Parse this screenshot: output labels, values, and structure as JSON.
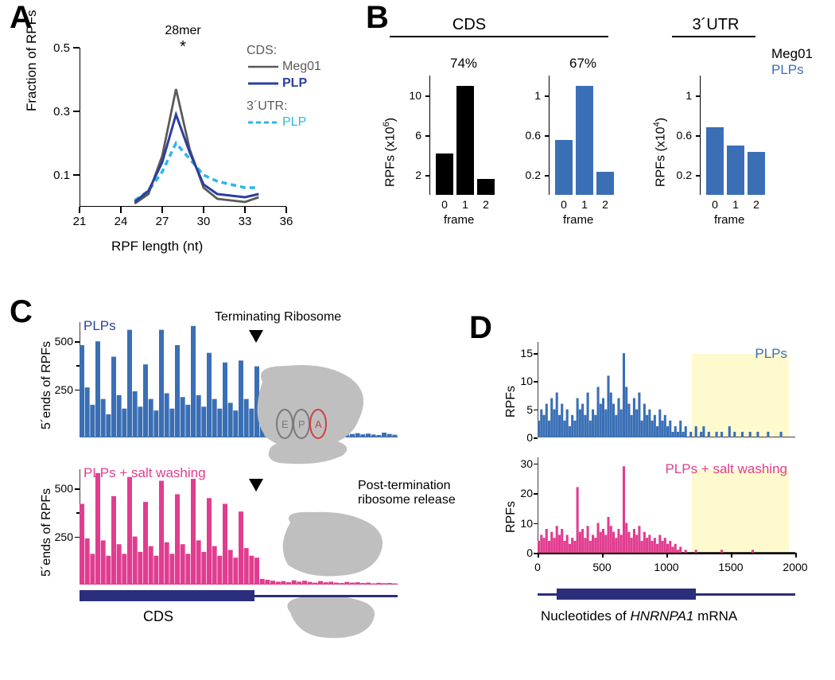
{
  "labels": {
    "A": "A",
    "B": "B",
    "C": "C",
    "D": "D"
  },
  "colors": {
    "meg01": "#5a5a5a",
    "plp": "#2b3fa0",
    "plp_utr": "#2ab7e8",
    "black": "#000000",
    "plp_bar": "#3a6fb5",
    "magenta": "#e13d90",
    "cds_track": "#2b2e7a",
    "utr_box": "#fff59b",
    "grey_ribo": "#bfbfbf"
  },
  "panelA": {
    "ylabel": "Fraction of RPFs",
    "xlabel": "RPF length (nt)",
    "peak_label": "28mer",
    "peak_star": "*",
    "ylim": [
      0,
      0.5
    ],
    "yticks": [
      0.1,
      0.3,
      0.5
    ],
    "xlim": [
      21,
      36
    ],
    "xticks": [
      21,
      24,
      27,
      30,
      33,
      36
    ],
    "legend": {
      "cds_hdr": "CDS:",
      "utr_hdr": "3´UTR:",
      "meg01": "Meg01",
      "plp": "PLP",
      "plp_utr": "PLP"
    },
    "series": {
      "meg01": {
        "x": [
          25,
          26,
          27,
          28,
          29,
          30,
          31,
          32,
          33,
          34
        ],
        "y": [
          0.01,
          0.04,
          0.16,
          0.37,
          0.18,
          0.06,
          0.025,
          0.02,
          0.015,
          0.03
        ]
      },
      "plp": {
        "x": [
          25,
          26,
          27,
          28,
          29,
          30,
          31,
          32,
          33,
          34
        ],
        "y": [
          0.015,
          0.05,
          0.14,
          0.29,
          0.17,
          0.07,
          0.04,
          0.035,
          0.03,
          0.04
        ]
      },
      "plp_utr": {
        "x": [
          25,
          26,
          27,
          28,
          29,
          30,
          31,
          32,
          33,
          34
        ],
        "y": [
          0.02,
          0.05,
          0.11,
          0.2,
          0.15,
          0.1,
          0.08,
          0.07,
          0.06,
          0.06
        ]
      }
    }
  },
  "panelB": {
    "cds_header": "CDS",
    "utr_header": "3´UTR",
    "sample_labels": {
      "meg01": "Meg01",
      "plp": "PLPs"
    },
    "frame_label": "frame",
    "plots": [
      {
        "id": "meg01",
        "ylab": "RPFs (x10⁶)",
        "color": "#000000",
        "pct": "74%",
        "yticks": [
          2,
          6,
          10
        ],
        "ymax": 12,
        "bars": [
          4.2,
          11.0,
          1.6
        ]
      },
      {
        "id": "plp",
        "ylab": "",
        "color": "#3a6fb5",
        "pct": "67%",
        "yticks": [
          0.2,
          0.6,
          1.0
        ],
        "ymax": 1.2,
        "bars": [
          0.55,
          1.1,
          0.23
        ]
      },
      {
        "id": "utr",
        "ylab": "RPFs (x10⁴)",
        "color": "#3a6fb5",
        "pct": "",
        "yticks": [
          0.2,
          0.6,
          1.0
        ],
        "ymax": 1.2,
        "bars": [
          0.68,
          0.5,
          0.43
        ]
      }
    ]
  },
  "panelC": {
    "ylabel": "5´ends  of RPFs",
    "terminating": "Terminating Ribosome",
    "release": "Post-termination ribosome release",
    "cds": "CDS",
    "epa": {
      "E": "E",
      "P": "P",
      "A": "A"
    },
    "top": {
      "title": "PLPs",
      "color": "#3a6fb5",
      "ymax": 600,
      "yticks": [
        250,
        500
      ],
      "bars": [
        480,
        260,
        170,
        500,
        200,
        120,
        420,
        220,
        150,
        560,
        240,
        160,
        380,
        200,
        140,
        560,
        230,
        150,
        480,
        210,
        170,
        580,
        220,
        160,
        440,
        200,
        150,
        390,
        180,
        140,
        400,
        200,
        150,
        370,
        160,
        140,
        350,
        30,
        20,
        20,
        30,
        15,
        18,
        22,
        14,
        25,
        18,
        12,
        30,
        20,
        15,
        18,
        22,
        16,
        20,
        15,
        12,
        25,
        18,
        14
      ]
    },
    "bottom": {
      "title": "PLPs + salt washing",
      "color": "#e13d90",
      "ymax": 600,
      "yticks": [
        250,
        500
      ],
      "bars": [
        420,
        240,
        160,
        580,
        230,
        150,
        460,
        210,
        160,
        560,
        250,
        170,
        430,
        200,
        150,
        540,
        220,
        160,
        470,
        210,
        160,
        550,
        230,
        170,
        450,
        200,
        150,
        420,
        180,
        140,
        380,
        190,
        150,
        140,
        30,
        25,
        20,
        15,
        18,
        12,
        22,
        15,
        20,
        14,
        10,
        18,
        12,
        15,
        10,
        8,
        14,
        10,
        12,
        8,
        10,
        6,
        9,
        7,
        8,
        6
      ]
    },
    "n_cds": 36
  },
  "panelD": {
    "xlabel_prefix": "Nucleotides of ",
    "xlabel_gene": "HNRNPA1",
    "xlabel_suffix": " mRNA",
    "ylabel": "RPFs",
    "xlim": [
      0,
      2000
    ],
    "xticks": [
      0,
      500,
      1000,
      1500,
      2000
    ],
    "cds_start": 150,
    "cds_end": 1230,
    "utr_box_start": 1200,
    "utr_box_end": 1950,
    "top": {
      "title": "PLPs",
      "color": "#3a6fb5",
      "ymax": 17,
      "yticks": [
        0,
        5,
        10,
        15
      ],
      "bars": [
        3,
        5,
        4,
        6,
        3,
        7,
        5,
        8,
        4,
        6,
        3,
        5,
        2,
        4,
        3,
        7,
        5,
        6,
        4,
        8,
        3,
        5,
        4,
        9,
        6,
        7,
        5,
        11,
        8,
        6,
        4,
        7,
        5,
        15,
        9,
        6,
        4,
        7,
        5,
        8,
        3,
        6,
        4,
        5,
        3,
        4,
        2,
        5,
        3,
        4,
        2,
        3,
        1,
        2,
        1,
        3,
        1,
        2,
        0,
        1,
        0,
        2,
        0,
        1,
        2,
        0,
        1,
        0,
        0,
        1,
        0,
        1,
        0,
        0,
        2,
        0,
        1,
        0,
        0,
        1,
        0,
        0,
        1,
        0,
        0,
        1,
        0,
        0,
        0,
        1,
        0,
        0,
        0,
        0,
        1,
        0,
        0,
        0,
        0,
        0
      ]
    },
    "bottom": {
      "title": "PLPs + salt washing",
      "color": "#e13d90",
      "ymax": 32,
      "yticks": [
        0,
        10,
        20,
        30
      ],
      "bars": [
        4,
        6,
        5,
        8,
        4,
        7,
        5,
        9,
        6,
        8,
        4,
        6,
        3,
        5,
        4,
        22,
        7,
        8,
        5,
        9,
        4,
        6,
        5,
        10,
        7,
        8,
        6,
        12,
        9,
        7,
        5,
        8,
        6,
        29,
        10,
        7,
        5,
        8,
        6,
        9,
        4,
        7,
        5,
        6,
        4,
        5,
        3,
        6,
        4,
        5,
        3,
        4,
        2,
        3,
        1,
        2,
        0,
        1,
        0,
        0,
        0,
        1,
        0,
        0,
        0,
        0,
        0,
        0,
        0,
        0,
        0,
        1,
        0,
        0,
        0,
        0,
        0,
        0,
        0,
        0,
        0,
        0,
        0,
        1,
        0,
        0,
        0,
        0,
        0,
        0,
        0,
        0,
        0,
        0,
        0,
        0,
        0,
        0,
        0,
        0
      ]
    }
  }
}
